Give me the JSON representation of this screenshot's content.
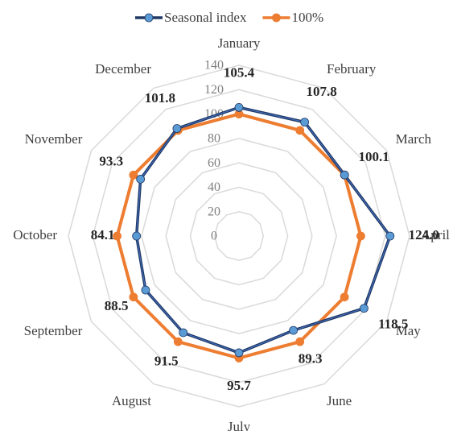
{
  "chart_data": {
    "type": "radar",
    "categories": [
      "January",
      "February",
      "March",
      "April",
      "May",
      "June",
      "July",
      "August",
      "September",
      "October",
      "November",
      "December"
    ],
    "series": [
      {
        "name": "Seasonal index",
        "color": "#203864",
        "marker_color": "#5b9bd5",
        "values": [
          105.4,
          107.8,
          100.1,
          124.0,
          118.5,
          89.3,
          95.7,
          91.5,
          88.5,
          84.1,
          93.3,
          101.8
        ],
        "value_labels": [
          "105.4",
          "107.8",
          "100.1",
          "124.0",
          "118.5",
          "89.3",
          "95.7",
          "91.5",
          "88.5",
          "84.1",
          "93.3",
          "101.8"
        ]
      },
      {
        "name": "100%",
        "color": "#ed7d31",
        "marker_color": "#ed7d31",
        "values": [
          100,
          100,
          100,
          100,
          100,
          100,
          100,
          100,
          100,
          100,
          100,
          100
        ]
      }
    ],
    "rlim": [
      0,
      140
    ],
    "rticks": [
      0,
      20,
      40,
      60,
      80,
      100,
      120,
      140
    ],
    "grid": true,
    "legend": "top"
  }
}
